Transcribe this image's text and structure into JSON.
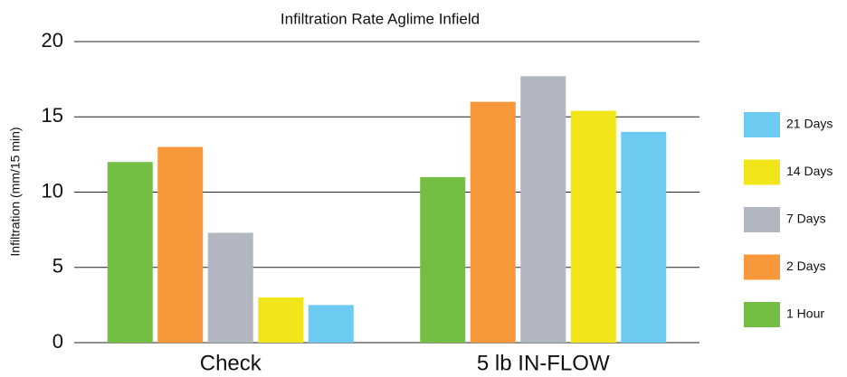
{
  "chart_data": {
    "type": "bar",
    "title": "Infiltration Rate Aglime Infield",
    "y_label": "Infiltration (mm/15 min)",
    "categories": [
      "Check",
      "5 lb IN-FLOW"
    ],
    "series": [
      {
        "name": "1 Hour",
        "color": "#72bf44",
        "values": [
          12,
          11
        ]
      },
      {
        "name": "2 Days",
        "color": "#f7983a",
        "values": [
          13,
          16
        ]
      },
      {
        "name": "7 Days",
        "color": "#b1b6c0",
        "values": [
          7.3,
          17.7
        ]
      },
      {
        "name": "14 Days",
        "color": "#f2e61b",
        "values": [
          3,
          15.4
        ]
      },
      {
        "name": "21 Days",
        "color": "#6dcbf1",
        "values": [
          2.5,
          14
        ]
      }
    ],
    "ylim": [
      0,
      20
    ],
    "yticks": [
      0,
      5,
      10,
      15,
      20
    ],
    "grid": true,
    "legend": "right"
  }
}
